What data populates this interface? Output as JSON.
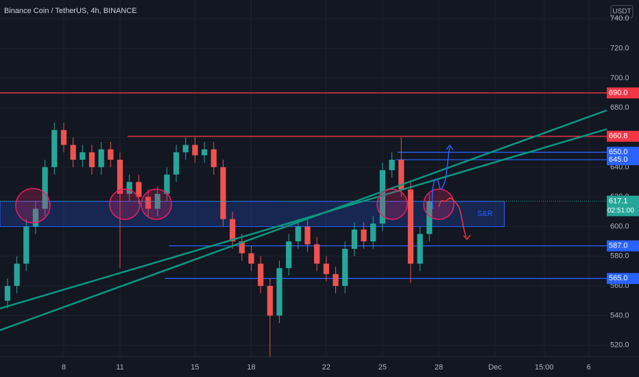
{
  "chart_data": {
    "type": "candlestick",
    "title": "Binance Coin / TetherUS, 4h, BINANCE",
    "currency": "USDT",
    "x": [
      5,
      5.5,
      6,
      6.5,
      7,
      7.5,
      8,
      8.5,
      9,
      9.5,
      10,
      10.5,
      11,
      11.5,
      12,
      12.5,
      13,
      13.5,
      14,
      14.5,
      15,
      15.5,
      16,
      16.5,
      17,
      17.5,
      18,
      18.5,
      19,
      19.5,
      20,
      20.5,
      21,
      21.5,
      22,
      22.5,
      23,
      23.5,
      24,
      24.5,
      25,
      25.5,
      26,
      26.5,
      27,
      27.5
    ],
    "open": [
      550,
      560,
      575,
      600,
      612,
      640,
      665,
      655,
      645,
      650,
      640,
      652,
      645,
      622,
      630,
      620,
      612,
      622,
      635,
      650,
      655,
      648,
      652,
      640,
      605,
      590,
      582,
      575,
      560,
      540,
      572,
      590,
      600,
      588,
      575,
      568,
      560,
      585,
      598,
      590,
      602,
      638,
      645,
      625,
      575,
      595
    ],
    "high": [
      565,
      580,
      605,
      617,
      645,
      670,
      670,
      660,
      655,
      655,
      657,
      657,
      650,
      635,
      635,
      625,
      627,
      640,
      655,
      660,
      660,
      657,
      657,
      645,
      610,
      595,
      587,
      580,
      565,
      577,
      595,
      605,
      605,
      593,
      580,
      573,
      590,
      603,
      603,
      607,
      643,
      650,
      660,
      630,
      600,
      622
    ],
    "low": [
      545,
      555,
      570,
      595,
      607,
      635,
      650,
      640,
      640,
      635,
      635,
      640,
      572,
      617,
      615,
      607,
      607,
      617,
      630,
      645,
      643,
      643,
      635,
      600,
      585,
      577,
      570,
      555,
      512,
      535,
      567,
      585,
      583,
      570,
      563,
      555,
      555,
      580,
      585,
      585,
      597,
      633,
      620,
      562,
      570,
      590
    ],
    "close": [
      560,
      575,
      600,
      612,
      640,
      665,
      655,
      645,
      650,
      640,
      652,
      645,
      622,
      630,
      620,
      612,
      622,
      635,
      650,
      655,
      648,
      652,
      640,
      605,
      590,
      582,
      575,
      560,
      540,
      572,
      590,
      600,
      588,
      575,
      568,
      560,
      585,
      598,
      590,
      602,
      638,
      645,
      625,
      575,
      595,
      617
    ],
    "up_color": "#26a69a",
    "down_color": "#ef5350",
    "xlim": [
      4.6,
      36.96
    ],
    "ylim": [
      512.5,
      752.6
    ],
    "xticks": [
      8,
      11,
      15,
      18,
      22,
      25,
      28,
      {
        "value": 31,
        "label": "Dec"
      },
      {
        "value": 33.625,
        "label": "15:00"
      },
      {
        "value": 36,
        "label": "6"
      }
    ],
    "yticks": [
      {
        "value": 520,
        "label": "520.0"
      },
      {
        "value": 540,
        "label": "540.0"
      },
      {
        "value": 560,
        "label": "560.0"
      },
      {
        "value": 580,
        "label": "580.0"
      },
      {
        "value": 600,
        "label": "600.0"
      },
      {
        "value": 620,
        "label": "620.0"
      },
      {
        "value": 640,
        "label": "640.0"
      },
      {
        "value": 660,
        "label": "660.0"
      },
      {
        "value": 680,
        "label": "680.0"
      },
      {
        "value": 700,
        "label": "700.0"
      },
      {
        "value": 720,
        "label": "720.0"
      },
      {
        "value": 740,
        "label": "740.0"
      }
    ],
    "grid": true,
    "levels": [
      {
        "value": 690,
        "label": "690.0",
        "color": "#f23645",
        "from": 4.6
      },
      {
        "value": 660.8,
        "label": "660.8",
        "color": "#f23645",
        "from": 11.4
      },
      {
        "value": 650,
        "label": "650.0",
        "color": "#2962ff",
        "from": 25.8
      },
      {
        "value": 645,
        "label": "645.0",
        "color": "#2962ff",
        "from": 25.7
      },
      {
        "value": 587,
        "label": "587.0",
        "color": "#2962ff",
        "from": 13.6
      },
      {
        "value": 565,
        "label": "565.0",
        "color": "#2962ff",
        "from": 13.4
      }
    ],
    "last": {
      "value": 617.1,
      "label": "617.1",
      "countdown": "02:51:00",
      "color": "#26a69a"
    },
    "zone": {
      "low": 600,
      "high": 617,
      "from": 4.6,
      "to": 31.5,
      "label": "S&R",
      "color": "#2962ff"
    },
    "trendlines": [
      {
        "x": [
          4.6,
          36.96
        ],
        "y": [
          530.2,
          678.3
        ],
        "color": "#089981"
      },
      {
        "x": [
          4.6,
          36.96
        ],
        "y": [
          544.8,
          665.6
        ],
        "color": "#089981"
      }
    ]
  }
}
